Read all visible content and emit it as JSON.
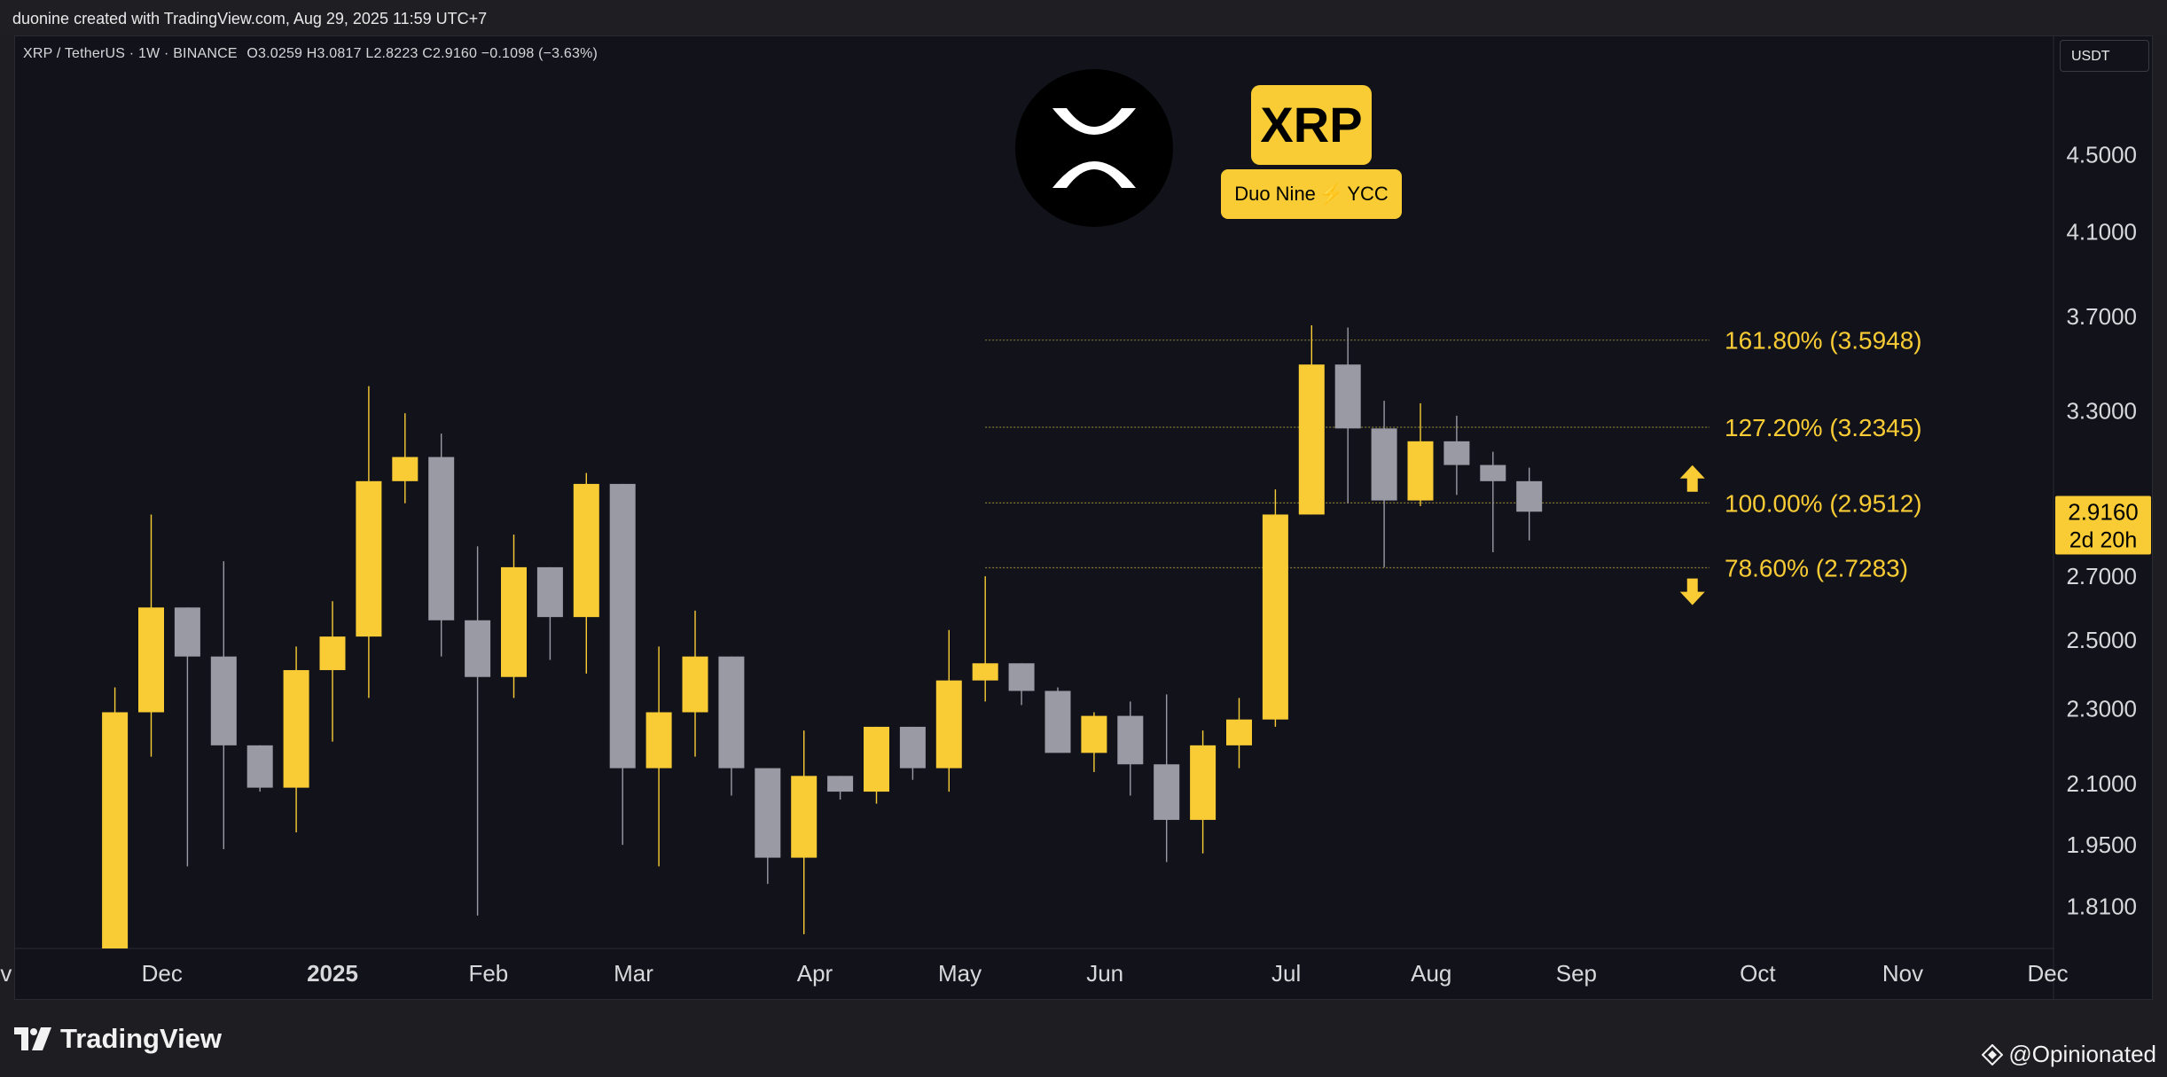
{
  "header": {
    "credit": "duonine created with TradingView.com, Aug 29, 2025 11:59 UTC+7"
  },
  "symbol": {
    "title": "XRP / TetherUS · 1W · BINANCE",
    "ohlc": "O3.0259 H3.0817 L2.8223 C2.9160 −0.1098 (−3.63%)"
  },
  "currency_button": "USDT",
  "logo_badge": {
    "ticker": "XRP",
    "team_left": "Duo Nine",
    "team_bolt": "⚡",
    "team_right": "YCC"
  },
  "footer": {
    "brand": "TradingView",
    "watermark": "@Opinionated"
  },
  "colors": {
    "bull": "#f9cc35",
    "bear": "#9a9aa4",
    "background": "#12131a",
    "fib_line": "#8a7a3a",
    "label": "#f9cc35"
  },
  "chart_data": {
    "type": "candlestick",
    "interval": "1W",
    "price_axis": {
      "scale": "log",
      "range": [
        1.72,
        5.2
      ],
      "ticks": [
        4.5,
        4.1,
        3.7,
        3.3,
        2.7,
        2.5,
        2.3,
        2.1,
        1.95,
        1.81
      ],
      "tick_labels": [
        "4.5000",
        "4.1000",
        "3.7000",
        "3.3000",
        "2.7000",
        "2.5000",
        "2.3000",
        "2.1000",
        "1.9500",
        "1.8100"
      ],
      "current_price": "2.9160",
      "countdown": "2d 20h"
    },
    "time_axis": {
      "labels": [
        "v",
        "Dec",
        "2025",
        "Feb",
        "Mar",
        "Apr",
        "May",
        "Jun",
        "Jul",
        "Aug",
        "Sep",
        "Oct",
        "Nov",
        "Dec"
      ],
      "label_week_index": [
        -3.0,
        1.3,
        6.0,
        10.3,
        14.3,
        19.3,
        23.3,
        27.3,
        32.3,
        36.3,
        40.3,
        45.3,
        49.3,
        53.3
      ]
    },
    "candles": [
      {
        "o": 1.72,
        "h": 2.36,
        "l": 1.72,
        "c": 2.29
      },
      {
        "o": 2.29,
        "h": 2.91,
        "l": 2.17,
        "c": 2.6
      },
      {
        "o": 2.6,
        "h": 2.6,
        "l": 1.9,
        "c": 2.45
      },
      {
        "o": 2.45,
        "h": 2.75,
        "l": 1.94,
        "c": 2.2
      },
      {
        "o": 2.2,
        "h": 2.2,
        "l": 2.08,
        "c": 2.09
      },
      {
        "o": 2.09,
        "h": 2.48,
        "l": 1.98,
        "c": 2.41
      },
      {
        "o": 2.41,
        "h": 2.62,
        "l": 2.21,
        "c": 2.51
      },
      {
        "o": 2.51,
        "h": 3.4,
        "l": 2.33,
        "c": 3.03
      },
      {
        "o": 3.03,
        "h": 3.29,
        "l": 2.95,
        "c": 3.12
      },
      {
        "o": 3.12,
        "h": 3.21,
        "l": 2.45,
        "c": 2.56
      },
      {
        "o": 2.56,
        "h": 2.8,
        "l": 1.79,
        "c": 2.39
      },
      {
        "o": 2.39,
        "h": 2.84,
        "l": 2.33,
        "c": 2.73
      },
      {
        "o": 2.73,
        "h": 2.73,
        "l": 2.44,
        "c": 2.57
      },
      {
        "o": 2.57,
        "h": 3.06,
        "l": 2.4,
        "c": 3.02
      },
      {
        "o": 3.02,
        "h": 3.02,
        "l": 1.95,
        "c": 2.14
      },
      {
        "o": 2.14,
        "h": 2.48,
        "l": 1.9,
        "c": 2.29
      },
      {
        "o": 2.29,
        "h": 2.59,
        "l": 2.17,
        "c": 2.45
      },
      {
        "o": 2.45,
        "h": 2.45,
        "l": 2.07,
        "c": 2.14
      },
      {
        "o": 2.14,
        "h": 2.14,
        "l": 1.86,
        "c": 1.92
      },
      {
        "o": 1.92,
        "h": 2.24,
        "l": 1.75,
        "c": 2.12
      },
      {
        "o": 2.12,
        "h": 2.12,
        "l": 2.06,
        "c": 2.08
      },
      {
        "o": 2.08,
        "h": 2.25,
        "l": 2.05,
        "c": 2.25
      },
      {
        "o": 2.25,
        "h": 2.25,
        "l": 2.11,
        "c": 2.14
      },
      {
        "o": 2.14,
        "h": 2.53,
        "l": 2.08,
        "c": 2.38
      },
      {
        "o": 2.38,
        "h": 2.7,
        "l": 2.32,
        "c": 2.43
      },
      {
        "o": 2.43,
        "h": 2.43,
        "l": 2.31,
        "c": 2.35
      },
      {
        "o": 2.35,
        "h": 2.36,
        "l": 2.19,
        "c": 2.18
      },
      {
        "o": 2.18,
        "h": 2.29,
        "l": 2.13,
        "c": 2.28
      },
      {
        "o": 2.28,
        "h": 2.32,
        "l": 2.07,
        "c": 2.15
      },
      {
        "o": 2.15,
        "h": 2.34,
        "l": 1.91,
        "c": 2.01
      },
      {
        "o": 2.01,
        "h": 2.24,
        "l": 1.93,
        "c": 2.2
      },
      {
        "o": 2.2,
        "h": 2.33,
        "l": 2.14,
        "c": 2.27
      },
      {
        "o": 2.27,
        "h": 3.0,
        "l": 2.25,
        "c": 2.91
      },
      {
        "o": 2.91,
        "h": 3.66,
        "l": 2.91,
        "c": 3.49
      },
      {
        "o": 3.49,
        "h": 3.65,
        "l": 2.95,
        "c": 3.23
      },
      {
        "o": 3.23,
        "h": 3.34,
        "l": 2.73,
        "c": 2.96
      },
      {
        "o": 2.96,
        "h": 3.33,
        "l": 2.94,
        "c": 3.18
      },
      {
        "o": 3.18,
        "h": 3.28,
        "l": 2.98,
        "c": 3.09
      },
      {
        "o": 3.09,
        "h": 3.14,
        "l": 2.78,
        "c": 3.03
      },
      {
        "o": 3.03,
        "h": 3.08,
        "l": 2.82,
        "c": 2.92
      }
    ],
    "fib_levels": [
      {
        "label": "161.80% (3.5948)",
        "price": 3.5948
      },
      {
        "label": "127.20% (3.2345)",
        "price": 3.2345
      },
      {
        "label": "100.00% (2.9512)",
        "price": 2.9512
      },
      {
        "label": "78.60% (2.7283)",
        "price": 2.7283
      }
    ],
    "fib_start_week": 24.0,
    "arrows": [
      {
        "direction": "up",
        "price": 3.04
      },
      {
        "direction": "down",
        "price": 2.65
      }
    ],
    "arrow_week": 43.5
  }
}
